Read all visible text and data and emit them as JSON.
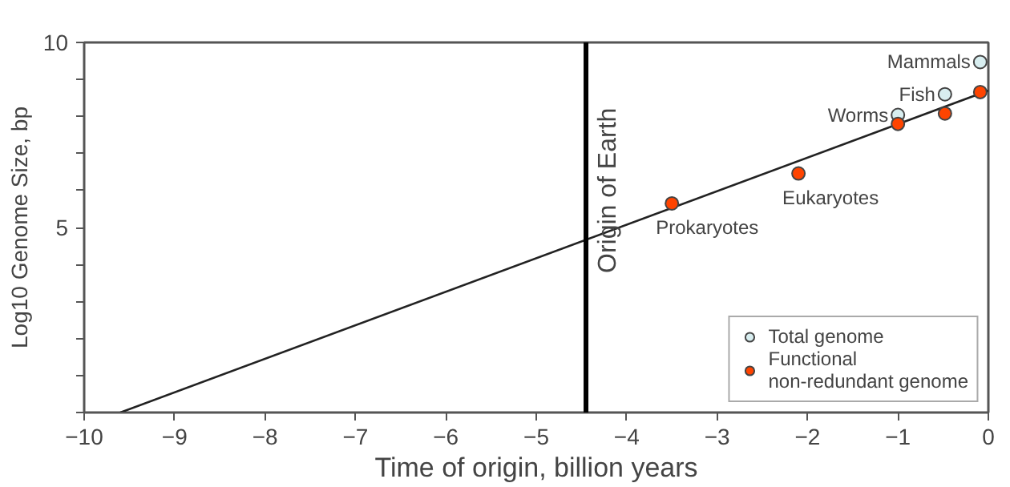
{
  "chart_data": {
    "type": "scatter",
    "xlabel": "Time of origin, billion years",
    "ylabel": "Log10 Genome Size, bp",
    "xlim": [
      -10,
      0
    ],
    "xticks": [
      -10,
      -9,
      -8,
      -7,
      -6,
      -5,
      -4,
      -3,
      -2,
      -1,
      0
    ],
    "ylim": [
      0,
      10
    ],
    "yticks": [
      {
        "value": 0,
        "label": null
      },
      {
        "value": 1,
        "label": null
      },
      {
        "value": 2,
        "label": null
      },
      {
        "value": 3,
        "label": null
      },
      {
        "value": 4,
        "label": null
      },
      5,
      {
        "value": 6,
        "label": null
      },
      {
        "value": 7,
        "label": null
      },
      {
        "value": 8,
        "label": null
      },
      {
        "value": 9,
        "label": null
      },
      10
    ],
    "series": [
      {
        "type": "line",
        "marker": "none",
        "color": "#222222",
        "x": [
          -9.6,
          0
        ],
        "values": [
          0,
          8.7
        ]
      },
      {
        "name": "Total genome",
        "color": "#d8eef0",
        "x": [
          -1,
          -0.48,
          -0.09
        ],
        "values": [
          8.04,
          8.6,
          9.47
        ]
      },
      {
        "name": "Functional non-redundant genome",
        "color": "#ff4400",
        "x": [
          -3.5,
          -2.1,
          -1,
          -0.48,
          -0.09
        ],
        "values": [
          5.65,
          6.46,
          7.8,
          8.08,
          8.66
        ]
      }
    ],
    "ref_lines": [
      {
        "axis": "x",
        "value": -4.45,
        "label": "Origin of Earth",
        "color": "#000000"
      }
    ],
    "annotations": [
      {
        "text": "Prokaryotes",
        "x": -3.5,
        "y": 5.65
      },
      {
        "text": "Eukaryotes",
        "x": -2.1,
        "y": 6.46
      },
      {
        "text": "Worms",
        "x": -1,
        "y": 8.04
      },
      {
        "text": "Fish",
        "x": -0.48,
        "y": 8.6
      },
      {
        "text": "Mammals",
        "x": -0.09,
        "y": 9.47
      }
    ],
    "legend": "bottom right",
    "grid": false,
    "marker": "circle"
  }
}
